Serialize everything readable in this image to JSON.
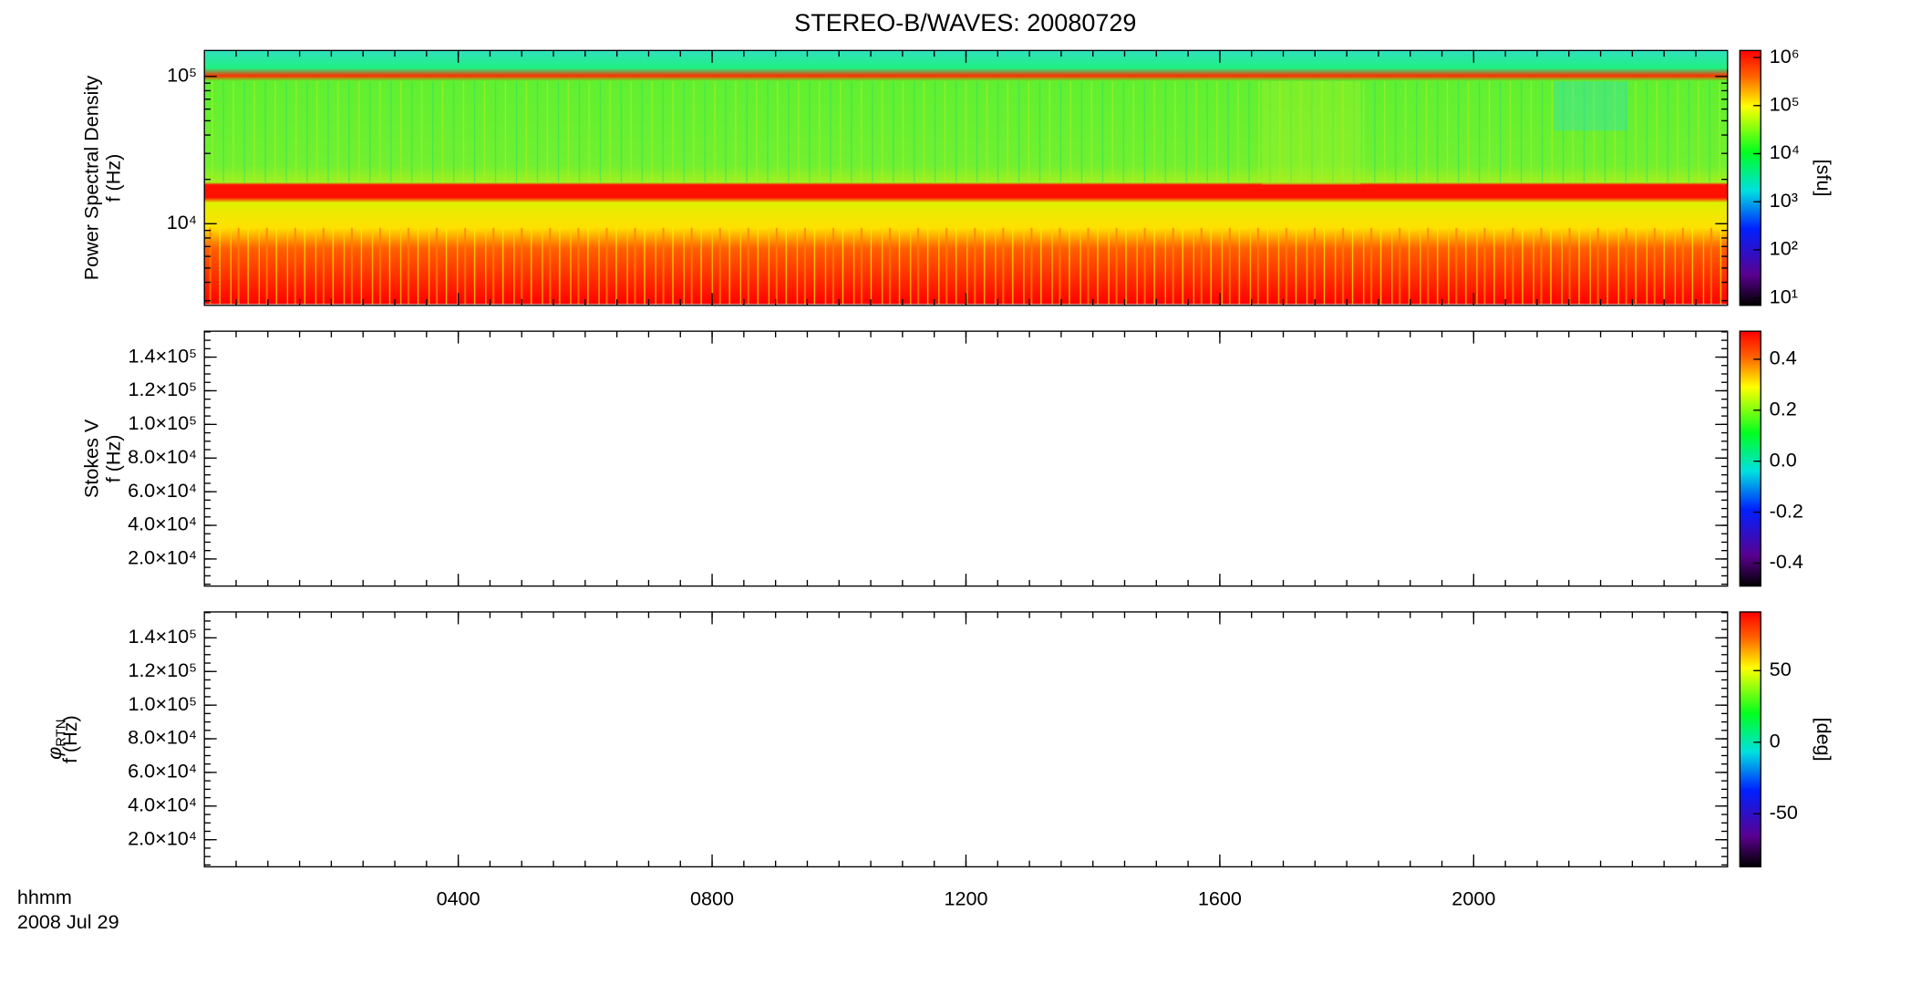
{
  "title": "STEREO-B/WAVES: 20080729",
  "x_axis": {
    "label": "hhmm",
    "date": "2008 Jul 29",
    "xlim": [
      0,
      24
    ],
    "xticks": [
      {
        "value": 4,
        "label": "0400"
      },
      {
        "value": 8,
        "label": "0800"
      },
      {
        "value": 12,
        "label": "1200"
      },
      {
        "value": 16,
        "label": "1600"
      },
      {
        "value": 20,
        "label": "2000"
      }
    ]
  },
  "chart_data": [
    {
      "type": "heatmap",
      "ylabel": "Power Spectral Density",
      "yunit": "f (Hz)",
      "log_y": true,
      "ylim": [
        2790,
        150000
      ],
      "yticks": [
        {
          "value": 10000,
          "label": "10⁴"
        },
        {
          "value": 100000,
          "label": "10⁵"
        }
      ],
      "colorbar": {
        "label": "[sfu]",
        "log": true,
        "lim": [
          7,
          1400000
        ],
        "ticks": [
          {
            "value": 10,
            "label": "10¹"
          },
          {
            "value": 100,
            "label": "10²"
          },
          {
            "value": 1000,
            "label": "10³"
          },
          {
            "value": 10000,
            "label": "10⁴"
          },
          {
            "value": 100000,
            "label": "10⁵"
          },
          {
            "value": 1000000,
            "label": "10⁶"
          }
        ]
      }
    },
    {
      "type": "heatmap",
      "ylabel": "Stokes V",
      "yunit": "f (Hz)",
      "log_y": false,
      "ylim": [
        3900,
        155400
      ],
      "yticks": [
        {
          "value": 20000,
          "label": "2.0×10⁴"
        },
        {
          "value": 40000,
          "label": "4.0×10⁴"
        },
        {
          "value": 60000,
          "label": "6.0×10⁴"
        },
        {
          "value": 80000,
          "label": "8.0×10⁴"
        },
        {
          "value": 100000,
          "label": "1.0×10⁵"
        },
        {
          "value": 120000,
          "label": "1.2×10⁵"
        },
        {
          "value": 140000,
          "label": "1.4×10⁵"
        }
      ],
      "colorbar": {
        "log": false,
        "lim": [
          -0.49,
          0.51
        ],
        "ticks": [
          -0.4,
          -0.2,
          {
            "value": 0,
            "label": "0.0"
          },
          0.2,
          0.4
        ]
      }
    },
    {
      "type": "heatmap",
      "ylabel": "φ",
      "ylabel_sub": "RTN",
      "yunit": "f (Hz)",
      "log_y": false,
      "ylim": [
        3900,
        155400
      ],
      "yticks": [
        {
          "value": 20000,
          "label": "2.0×10⁴"
        },
        {
          "value": 40000,
          "label": "4.0×10⁴"
        },
        {
          "value": 60000,
          "label": "6.0×10⁴"
        },
        {
          "value": 80000,
          "label": "8.0×10⁴"
        },
        {
          "value": 100000,
          "label": "1.0×10⁵"
        },
        {
          "value": 120000,
          "label": "1.2×10⁵"
        },
        {
          "value": 140000,
          "label": "1.4×10⁵"
        }
      ],
      "colorbar": {
        "label": "[deg]",
        "log": false,
        "lim": [
          -87,
          91
        ],
        "ticks": [
          -50,
          0,
          50
        ]
      }
    }
  ]
}
